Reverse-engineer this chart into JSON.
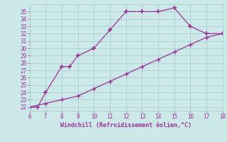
{
  "xlabel": "Windchill (Refroidissement éolien,°C)",
  "bg_color": "#cce8e8",
  "line_color": "#993399",
  "line1_x": [
    6,
    6.5,
    7,
    8,
    8.5,
    9,
    10,
    11,
    12,
    13,
    14,
    15,
    16,
    17,
    18
  ],
  "line1_y": [
    22,
    22,
    24,
    27.5,
    27.5,
    29,
    30,
    32.5,
    35,
    35,
    35,
    35.5,
    33,
    32,
    32
  ],
  "line2_x": [
    6,
    7,
    8,
    9,
    10,
    11,
    12,
    13,
    14,
    15,
    16,
    17,
    18
  ],
  "line2_y": [
    22,
    22.5,
    23,
    23.5,
    24.5,
    25.5,
    26.5,
    27.5,
    28.5,
    29.5,
    30.5,
    31.5,
    32
  ],
  "xlim": [
    6,
    18
  ],
  "ylim": [
    21.5,
    36
  ],
  "xticks": [
    6,
    7,
    8,
    9,
    10,
    11,
    12,
    13,
    14,
    15,
    16,
    17,
    18
  ],
  "yticks": [
    22,
    23,
    24,
    25,
    26,
    27,
    28,
    29,
    30,
    31,
    32,
    33,
    34,
    35
  ],
  "grid_color": "#aacece",
  "marker": "+"
}
